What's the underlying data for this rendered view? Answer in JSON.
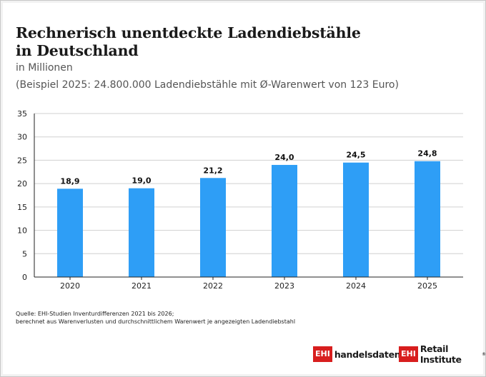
{
  "header": {
    "title_line1": "Rechnerisch unentdeckte Ladendiebstähle",
    "title_line2": "in Deutschland",
    "subtitle": "in Millionen",
    "example": "(Beispiel 2025: 24.800.000 Ladendiebstähle mit Ø-Warenwert von 123 Euro)"
  },
  "chart_data": {
    "type": "bar",
    "categories": [
      "2020",
      "2021",
      "2022",
      "2023",
      "2024",
      "2025"
    ],
    "values": [
      18.9,
      19.0,
      21.2,
      24.0,
      24.5,
      24.8
    ],
    "value_labels": [
      "18,9",
      "19,0",
      "21,2",
      "24,0",
      "24,5",
      "24,8"
    ],
    "title": "Rechnerisch unentdeckte Ladendiebstähle in Deutschland",
    "subtitle": "in Millionen",
    "xlabel": "",
    "ylabel": "",
    "ylim": [
      0,
      35
    ],
    "yticks": [
      0,
      5,
      10,
      15,
      20,
      25,
      30,
      35
    ],
    "grid": true,
    "legend": "none",
    "bar_color": "#2e9ef6"
  },
  "footer": {
    "source_line1": "Quelle: EHI-Studien Inventurdifferenzen 2021 bis 2026;",
    "source_line2": "berechnet aus Warenverlusten und durchschnittlichem Warenwert je angezeigten Ladendiebstahl",
    "logo1_mark": "EHI",
    "logo1_text": "handelsdaten.de",
    "logo2_mark": "EHI",
    "logo2_text": "Retail Institute",
    "logo2_reg": "®",
    "brand_color": "#d81e1e"
  }
}
